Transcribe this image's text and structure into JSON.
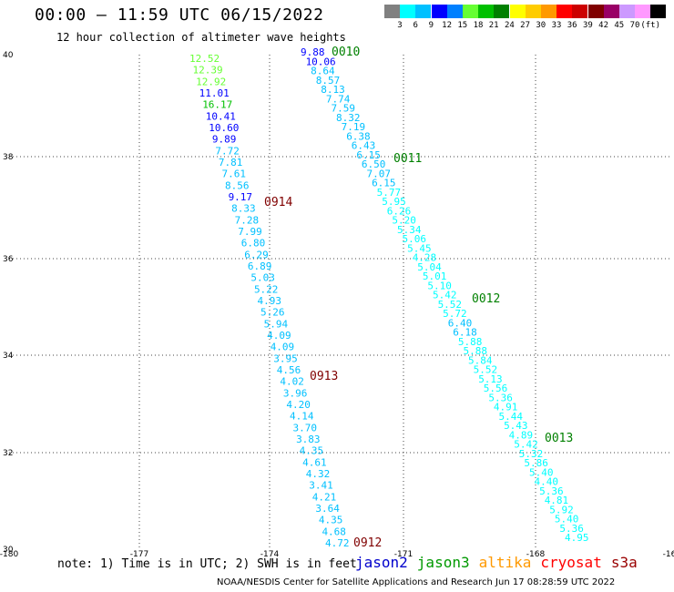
{
  "header": {
    "title": "00:00 — 11:59 UTC 06/15/2022",
    "subtitle": "12 hour collection of altimeter wave heights"
  },
  "colorbar": {
    "colors": [
      "#808080",
      "#00ffff",
      "#00c0ff",
      "#0000ff",
      "#0080ff",
      "#66ff33",
      "#00c000",
      "#008000",
      "#ffff00",
      "#ffcc00",
      "#ff9900",
      "#ff0000",
      "#cc0000",
      "#800000",
      "#990066",
      "#cc99ff",
      "#ff99ff",
      "#000000"
    ],
    "labels": [
      "3",
      "6",
      "9",
      "12",
      "15",
      "18",
      "21",
      "24",
      "27",
      "30",
      "33",
      "36",
      "39",
      "42",
      "45",
      "70"
    ],
    "unit": "(ft)"
  },
  "axes": {
    "x_ticks": [
      "-180",
      "-177",
      "-174",
      "-171",
      "-168",
      "-16"
    ],
    "y_ticks": [
      "40",
      "38",
      "36",
      "34",
      "32",
      "30"
    ]
  },
  "passes": [
    {
      "label": "0010",
      "color": "#008000"
    },
    {
      "label": "0011",
      "color": "#008000"
    },
    {
      "label": "0012",
      "color": "#008000"
    },
    {
      "label": "0013",
      "color": "#008000"
    },
    {
      "label": "0914",
      "color": "#800000"
    },
    {
      "label": "0913",
      "color": "#800000"
    },
    {
      "label": "0912",
      "color": "#800000"
    }
  ],
  "track_west": [
    {
      "v": "12.52",
      "c": "#66ff33"
    },
    {
      "v": "12.39",
      "c": "#66ff33"
    },
    {
      "v": "12.92",
      "c": "#66ff33"
    },
    {
      "v": "11.01",
      "c": "#0000ff"
    },
    {
      "v": "16.17",
      "c": "#00c000"
    },
    {
      "v": "10.41",
      "c": "#0000ff"
    },
    {
      "v": "10.60",
      "c": "#0000ff"
    },
    {
      "v": "9.89",
      "c": "#0000ff"
    },
    {
      "v": "7.72",
      "c": "#00c0ff"
    },
    {
      "v": "7.81",
      "c": "#00c0ff"
    },
    {
      "v": "7.61",
      "c": "#00c0ff"
    },
    {
      "v": "8.56",
      "c": "#00c0ff"
    },
    {
      "v": "9.17",
      "c": "#0000ff"
    },
    {
      "v": "8.33",
      "c": "#00c0ff"
    },
    {
      "v": "7.28",
      "c": "#00c0ff"
    },
    {
      "v": "7.99",
      "c": "#00c0ff"
    },
    {
      "v": "6.80",
      "c": "#00c0ff"
    },
    {
      "v": "6.29",
      "c": "#00c0ff"
    },
    {
      "v": "6.89",
      "c": "#00c0ff"
    },
    {
      "v": "5.03",
      "c": "#00c0ff"
    },
    {
      "v": "5.22",
      "c": "#00c0ff"
    },
    {
      "v": "4.93",
      "c": "#00c0ff"
    },
    {
      "v": "5.26",
      "c": "#00c0ff"
    },
    {
      "v": "5.94",
      "c": "#00c0ff"
    },
    {
      "v": "4.09",
      "c": "#00c0ff"
    },
    {
      "v": "4.09",
      "c": "#00c0ff"
    },
    {
      "v": "3.95",
      "c": "#00c0ff"
    },
    {
      "v": "4.56",
      "c": "#00c0ff"
    },
    {
      "v": "4.02",
      "c": "#00c0ff"
    },
    {
      "v": "3.96",
      "c": "#00c0ff"
    },
    {
      "v": "4.20",
      "c": "#00c0ff"
    },
    {
      "v": "4.14",
      "c": "#00c0ff"
    },
    {
      "v": "3.70",
      "c": "#00c0ff"
    },
    {
      "v": "3.83",
      "c": "#00c0ff"
    },
    {
      "v": "4.35",
      "c": "#00c0ff"
    },
    {
      "v": "4.61",
      "c": "#00c0ff"
    },
    {
      "v": "4.32",
      "c": "#00c0ff"
    },
    {
      "v": "3.41",
      "c": "#00c0ff"
    },
    {
      "v": "4.21",
      "c": "#00c0ff"
    },
    {
      "v": "3.64",
      "c": "#00c0ff"
    },
    {
      "v": "4.35",
      "c": "#00c0ff"
    },
    {
      "v": "4.68",
      "c": "#00c0ff"
    },
    {
      "v": "4.72",
      "c": "#00c0ff"
    }
  ],
  "track_east": [
    {
      "v": "9.88",
      "c": "#0000ff"
    },
    {
      "v": "10.06",
      "c": "#0000ff"
    },
    {
      "v": "8.64",
      "c": "#00c0ff"
    },
    {
      "v": "8.57",
      "c": "#00c0ff"
    },
    {
      "v": "8.13",
      "c": "#00c0ff"
    },
    {
      "v": "7.74",
      "c": "#00c0ff"
    },
    {
      "v": "7.59",
      "c": "#00c0ff"
    },
    {
      "v": "8.32",
      "c": "#00c0ff"
    },
    {
      "v": "7.19",
      "c": "#00c0ff"
    },
    {
      "v": "6.38",
      "c": "#00c0ff"
    },
    {
      "v": "6.43",
      "c": "#00c0ff"
    },
    {
      "v": "6.15",
      "c": "#00c0ff"
    },
    {
      "v": "6.50",
      "c": "#00c0ff"
    },
    {
      "v": "7.07",
      "c": "#00c0ff"
    },
    {
      "v": "6.15",
      "c": "#00c0ff"
    },
    {
      "v": "5.77",
      "c": "#00ffff"
    },
    {
      "v": "5.95",
      "c": "#00ffff"
    },
    {
      "v": "6.26",
      "c": "#00ffff"
    },
    {
      "v": "5.20",
      "c": "#00ffff"
    },
    {
      "v": "5.34",
      "c": "#00ffff"
    },
    {
      "v": "5.06",
      "c": "#00ffff"
    },
    {
      "v": "5.45",
      "c": "#00ffff"
    },
    {
      "v": "4.28",
      "c": "#00ffff"
    },
    {
      "v": "5.04",
      "c": "#00ffff"
    },
    {
      "v": "5.01",
      "c": "#00ffff"
    },
    {
      "v": "5.10",
      "c": "#00ffff"
    },
    {
      "v": "5.42",
      "c": "#00ffff"
    },
    {
      "v": "5.52",
      "c": "#00ffff"
    },
    {
      "v": "5.72",
      "c": "#00ffff"
    },
    {
      "v": "6.40",
      "c": "#00c0ff"
    },
    {
      "v": "6.18",
      "c": "#00c0ff"
    },
    {
      "v": "5.88",
      "c": "#00ffff"
    },
    {
      "v": "5.88",
      "c": "#00ffff"
    },
    {
      "v": "5.84",
      "c": "#00ffff"
    },
    {
      "v": "5.52",
      "c": "#00ffff"
    },
    {
      "v": "5.13",
      "c": "#00ffff"
    },
    {
      "v": "5.56",
      "c": "#00ffff"
    },
    {
      "v": "5.36",
      "c": "#00ffff"
    },
    {
      "v": "4.91",
      "c": "#00ffff"
    },
    {
      "v": "5.44",
      "c": "#00ffff"
    },
    {
      "v": "5.43",
      "c": "#00ffff"
    },
    {
      "v": "4.89",
      "c": "#00ffff"
    },
    {
      "v": "5.42",
      "c": "#00ffff"
    },
    {
      "v": "5.32",
      "c": "#00ffff"
    },
    {
      "v": "5.86",
      "c": "#00ffff"
    },
    {
      "v": "5.40",
      "c": "#00ffff"
    },
    {
      "v": "4.40",
      "c": "#00ffff"
    },
    {
      "v": "5.36",
      "c": "#00ffff"
    },
    {
      "v": "4.81",
      "c": "#00ffff"
    },
    {
      "v": "5.92",
      "c": "#00ffff"
    },
    {
      "v": "5.40",
      "c": "#00ffff"
    },
    {
      "v": "5.36",
      "c": "#00ffff"
    },
    {
      "v": "4.95",
      "c": "#00ffff"
    }
  ],
  "note": "note: 1) Time is in UTC; 2) SWH is in feet",
  "legend": [
    {
      "name": "jason2",
      "color": "#0000cc"
    },
    {
      "name": "jason3",
      "color": "#009900"
    },
    {
      "name": "altika",
      "color": "#ff9900"
    },
    {
      "name": "cryosat",
      "color": "#ff0000"
    },
    {
      "name": "s3a",
      "color": "#990000"
    }
  ],
  "credit": "NOAA/NESDIS Center for Satellite Applications and Research   Jun 17 08:28:59 UTC 2022"
}
